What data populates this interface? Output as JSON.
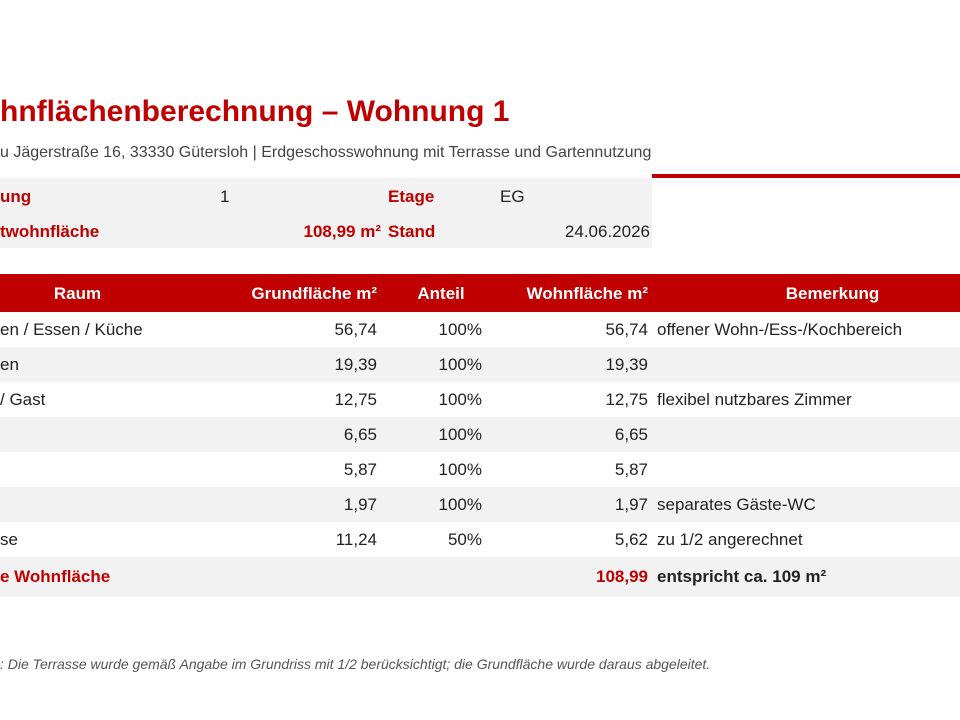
{
  "header": {
    "title": "hnflächenberechnung – Wohnung 1",
    "subtitle": "u Jägerstraße 16, 33330 Gütersloh | Erdgeschosswohnung mit Terrasse und Gartennutzung"
  },
  "info": [
    {
      "label": "ung",
      "value": "1",
      "label2": "Etage",
      "value2": "EG"
    },
    {
      "label": "twohnfläche",
      "value": "108,99 m²",
      "label2": "Stand",
      "value2": "24.06.2026"
    }
  ],
  "table": {
    "columns": [
      "Raum",
      "Grundfläche m²",
      "Anteil",
      "Wohnfläche m²",
      "Bemerkung"
    ],
    "rows": [
      [
        "en / Essen / Küche",
        "56,74",
        "100%",
        "56,74",
        "offener Wohn-/Ess-/Kochbereich"
      ],
      [
        "en",
        "19,39",
        "100%",
        "19,39",
        null
      ],
      [
        "/ Gast",
        "12,75",
        "100%",
        "12,75",
        "flexibel nutzbares Zimmer"
      ],
      [
        null,
        "6,65",
        "100%",
        "6,65",
        null
      ],
      [
        null,
        "5,87",
        "100%",
        "5,87",
        null
      ],
      [
        null,
        "1,97",
        "100%",
        "1,97",
        "separates Gäste-WC"
      ],
      [
        "se",
        "11,24",
        "50%",
        "5,62",
        "zu 1/2 angerechnet"
      ]
    ],
    "total": {
      "label": "e Wohnfläche",
      "value": "108,99",
      "note": "entspricht ca. 109 m²"
    }
  },
  "footnote": ": Die Terrasse wurde gemäß Angabe im Grundriss mit 1/2 berücksichtigt; die Grundfläche wurde daraus abgeleitet."
}
